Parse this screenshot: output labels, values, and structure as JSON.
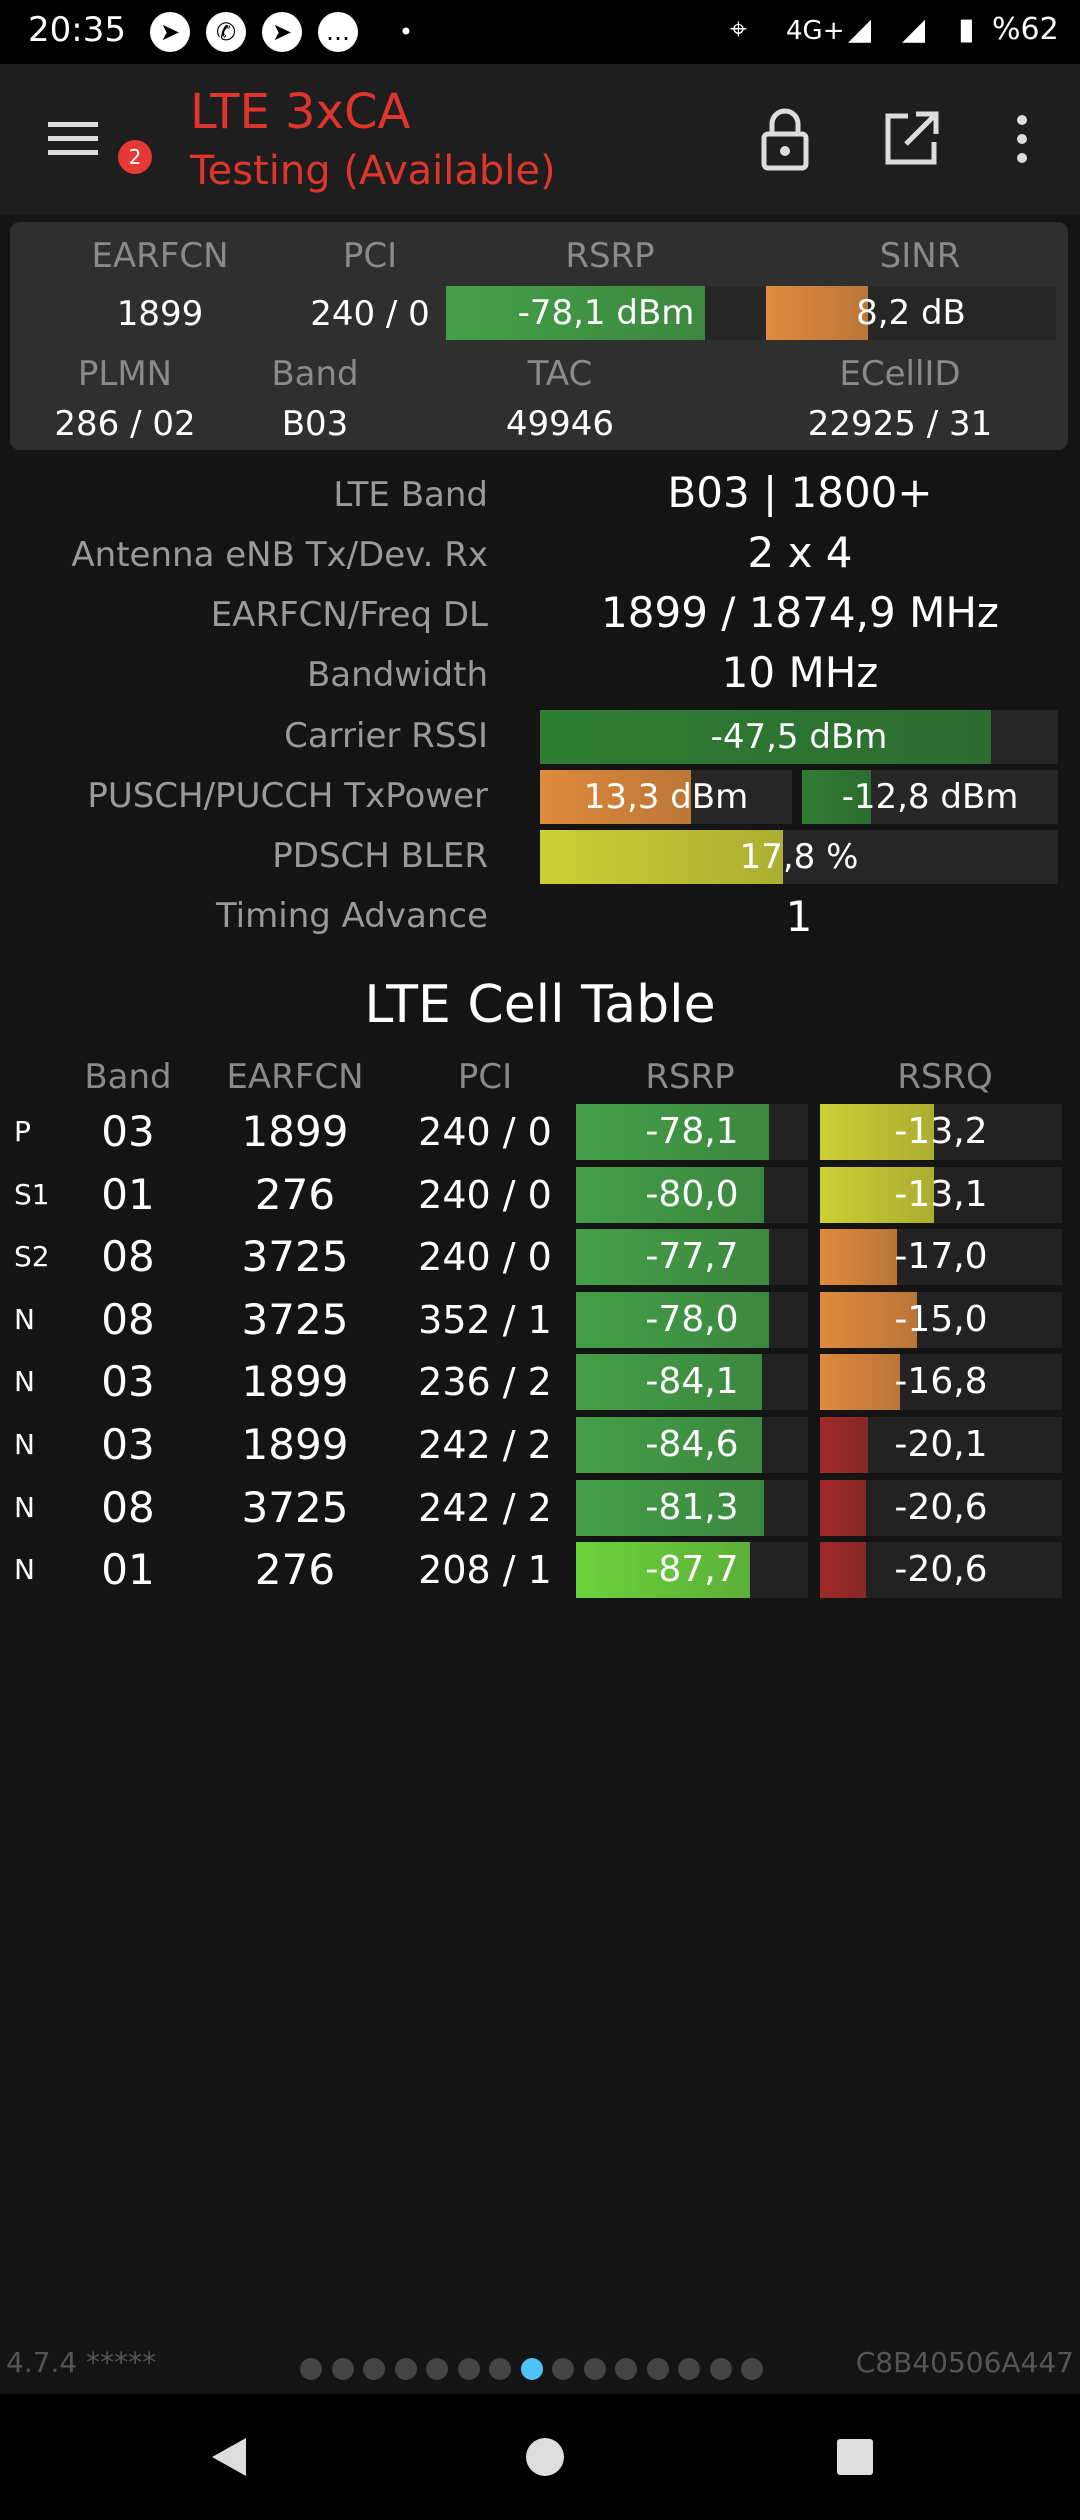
{
  "status_bar": {
    "time": "20:35",
    "network": "4G+",
    "battery": "%62"
  },
  "header": {
    "title": "LTE 3xCA",
    "subtitle": "Testing (Available)",
    "badge_count": "2"
  },
  "summary": {
    "labels": {
      "earfcn": "EARFCN",
      "pci": "PCI",
      "rsrp": "RSRP",
      "sinr": "SINR",
      "plmn": "PLMN",
      "band": "Band",
      "tac": "TAC",
      "ecellid": "ECellID"
    },
    "earfcn": "1899",
    "pci": "240 / 0",
    "rsrp": {
      "text": "-78,1 dBm",
      "level": 0.81,
      "color": "#43a047"
    },
    "sinr": {
      "text": "8,2 dB",
      "level": 0.35,
      "color": "#e08a3c"
    },
    "plmn": "286 / 02",
    "band": "B03",
    "tac": "49946",
    "ecellid": "22925 / 31"
  },
  "details": [
    {
      "label": "LTE Band",
      "value": "B03 | 1800+"
    },
    {
      "label": "Antenna eNB Tx/Dev. Rx",
      "value": "2 x 4"
    },
    {
      "label": "EARFCN/Freq DL",
      "value": "1899 / 1874,9 MHz"
    },
    {
      "label": "Bandwidth",
      "value": "10 MHz"
    },
    {
      "label": "Carrier RSSI",
      "value": "-47,5 dBm"
    },
    {
      "label": "PUSCH/PUCCH TxPower",
      "value": "13,3 dBm",
      "value2": "-12,8 dBm"
    },
    {
      "label": "PDSCH BLER",
      "value": "17,8 %"
    },
    {
      "label": "Timing Advance",
      "value": "1"
    }
  ],
  "detail_bars": {
    "rssi": {
      "level": 0.87,
      "color": "#2e7d32"
    },
    "pusch": {
      "level": 0.6,
      "color": "#e08a3c"
    },
    "pucch": {
      "level": 0.27,
      "color": "#2e7d32"
    },
    "bler": {
      "level": 0.47,
      "color": "#cdd034"
    }
  },
  "cell_table": {
    "title": "LTE Cell Table",
    "columns": [
      "Band",
      "EARFCN",
      "PCI",
      "RSRP",
      "RSRQ"
    ],
    "rows": [
      {
        "type": "P",
        "band": "03",
        "earfcn": "1899",
        "pci": "240 / 0",
        "rsrp": "-78,1",
        "rsrp_level": 0.83,
        "rsrp_color": "#43a047",
        "rsrq": "-13,2",
        "rsrq_level": 0.47,
        "rsrq_color": "#cdd034"
      },
      {
        "type": "S1",
        "band": "01",
        "earfcn": "276",
        "pci": "240 / 0",
        "rsrp": "-80,0",
        "rsrp_level": 0.81,
        "rsrp_color": "#43a047",
        "rsrq": "-13,1",
        "rsrq_level": 0.47,
        "rsrq_color": "#cdd034"
      },
      {
        "type": "S2",
        "band": "08",
        "earfcn": "3725",
        "pci": "240 / 0",
        "rsrp": "-77,7",
        "rsrp_level": 0.83,
        "rsrp_color": "#43a047",
        "rsrq": "-17,0",
        "rsrq_level": 0.32,
        "rsrq_color": "#e08a3c"
      },
      {
        "type": "N",
        "band": "08",
        "earfcn": "3725",
        "pci": "352 / 1",
        "rsrp": "-78,0",
        "rsrp_level": 0.83,
        "rsrp_color": "#43a047",
        "rsrq": "-15,0",
        "rsrq_level": 0.4,
        "rsrq_color": "#e08a3c"
      },
      {
        "type": "N",
        "band": "03",
        "earfcn": "1899",
        "pci": "236 / 2",
        "rsrp": "-84,1",
        "rsrp_level": 0.8,
        "rsrp_color": "#43a047",
        "rsrq": "-16,8",
        "rsrq_level": 0.33,
        "rsrq_color": "#e08a3c"
      },
      {
        "type": "N",
        "band": "03",
        "earfcn": "1899",
        "pci": "242 / 2",
        "rsrp": "-84,6",
        "rsrp_level": 0.8,
        "rsrp_color": "#43a047",
        "rsrq": "-20,1",
        "rsrq_level": 0.2,
        "rsrq_color": "#a02828"
      },
      {
        "type": "N",
        "band": "08",
        "earfcn": "3725",
        "pci": "242 / 2",
        "rsrp": "-81,3",
        "rsrp_level": 0.81,
        "rsrp_color": "#43a047",
        "rsrq": "-20,6",
        "rsrq_level": 0.19,
        "rsrq_color": "#a02828"
      },
      {
        "type": "N",
        "band": "01",
        "earfcn": "276",
        "pci": "208 / 1",
        "rsrp": "-87,7",
        "rsrp_level": 0.75,
        "rsrp_color": "#6bd33c",
        "rsrq": "-20,6",
        "rsrq_level": 0.19,
        "rsrq_color": "#a02828"
      }
    ]
  },
  "footer": {
    "version": "4.7.4 *****",
    "device_id": "C8B40506A447",
    "pages": 15,
    "active_page": 8
  }
}
